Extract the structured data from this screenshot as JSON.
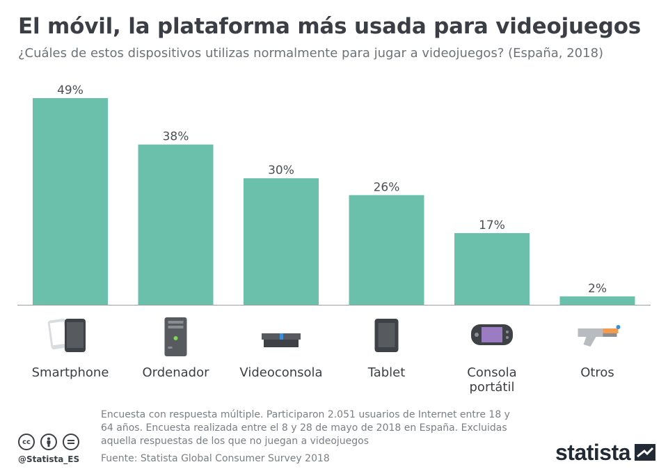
{
  "header": {
    "title": "El móvil, la plataforma más usada para videojuegos",
    "subtitle": "¿Cuáles de estos dispositivos utilizas normalmente para jugar a videojuegos? (España, 2018)"
  },
  "chart_data": {
    "type": "bar",
    "categories": [
      "Smartphone",
      "Ordenador",
      "Videoconsola",
      "Tablet",
      "Consola portátil",
      "Otros"
    ],
    "category_label_lines": [
      [
        "Smartphone"
      ],
      [
        "Ordenador"
      ],
      [
        "Videoconsola"
      ],
      [
        "Tablet"
      ],
      [
        "Consola",
        "portátil"
      ],
      [
        "Otros"
      ]
    ],
    "category_icons": [
      "smartphone-icon",
      "desktop-computer-icon",
      "game-console-icon",
      "tablet-icon",
      "handheld-console-icon",
      "toy-blaster-icon"
    ],
    "values": [
      49,
      38,
      30,
      26,
      17,
      2
    ],
    "value_labels": [
      "49%",
      "38%",
      "30%",
      "26%",
      "17%",
      "2%"
    ],
    "unit": "%",
    "ylim": [
      0,
      49
    ],
    "grid": false,
    "bar_color": "#6bc0ac"
  },
  "footer": {
    "note": "Encuesta con respuesta múltiple. Participaron 2.051 usuarios de Internet entre 18 y 64 años. Encuesta realizada entre el 8 y 28 de mayo de 2018 en España. Excluidas aquella respuestas de los que no juegan a videojuegos",
    "source": "Fuente: Statista Global Consumer Survey 2018",
    "handle": "@Statista_ES",
    "license_icons": [
      "cc",
      "by",
      "nd"
    ],
    "brand": "statista"
  },
  "colors": {
    "title": "#3b3f45",
    "text": "#6d7278",
    "bar": "#6bc0ac",
    "brand": "#222a35"
  }
}
